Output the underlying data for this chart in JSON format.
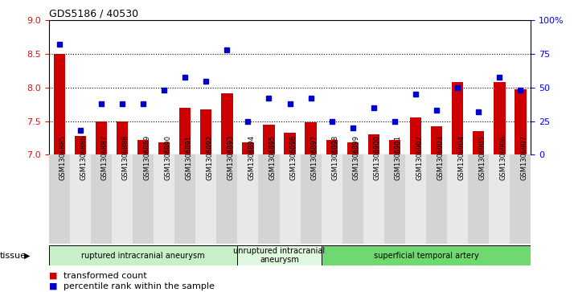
{
  "title": "GDS5186 / 40530",
  "samples": [
    "GSM1306885",
    "GSM1306886",
    "GSM1306887",
    "GSM1306888",
    "GSM1306889",
    "GSM1306890",
    "GSM1306891",
    "GSM1306892",
    "GSM1306893",
    "GSM1306894",
    "GSM1306895",
    "GSM1306896",
    "GSM1306897",
    "GSM1306898",
    "GSM1306899",
    "GSM1306900",
    "GSM1306901",
    "GSM1306902",
    "GSM1306903",
    "GSM1306904",
    "GSM1306905",
    "GSM1306906",
    "GSM1306907"
  ],
  "bar_values": [
    8.5,
    7.28,
    7.5,
    7.5,
    7.22,
    7.18,
    7.7,
    7.68,
    7.92,
    7.18,
    7.45,
    7.33,
    7.48,
    7.22,
    7.18,
    7.3,
    7.22,
    7.56,
    7.42,
    8.08,
    7.35,
    8.08,
    7.98
  ],
  "dot_values": [
    82,
    18,
    38,
    38,
    38,
    48,
    58,
    55,
    78,
    25,
    42,
    38,
    42,
    25,
    20,
    35,
    25,
    45,
    33,
    50,
    32,
    58,
    48
  ],
  "ylim": [
    7,
    9
  ],
  "y2lim": [
    0,
    100
  ],
  "yticks": [
    7,
    7.5,
    8,
    8.5,
    9
  ],
  "y2ticks": [
    0,
    25,
    50,
    75,
    100
  ],
  "y2ticklabels": [
    "0",
    "25",
    "50",
    "75",
    "100%"
  ],
  "bar_color": "#cc0000",
  "dot_color": "#0000cc",
  "bg_color": "#ffffff",
  "tick_bg_dark": "#d4d4d4",
  "tick_bg_light": "#e8e8e8",
  "tissue_groups": [
    {
      "label": "ruptured intracranial aneurysm",
      "start": 0,
      "end": 9,
      "color": "#c8f0c8"
    },
    {
      "label": "unruptured intracranial\naneurysm",
      "start": 9,
      "end": 13,
      "color": "#e0f8e0"
    },
    {
      "label": "superficial temporal artery",
      "start": 13,
      "end": 23,
      "color": "#70d870"
    }
  ],
  "legend_items": [
    {
      "label": "transformed count",
      "color": "#cc0000"
    },
    {
      "label": "percentile rank within the sample",
      "color": "#0000cc"
    }
  ]
}
